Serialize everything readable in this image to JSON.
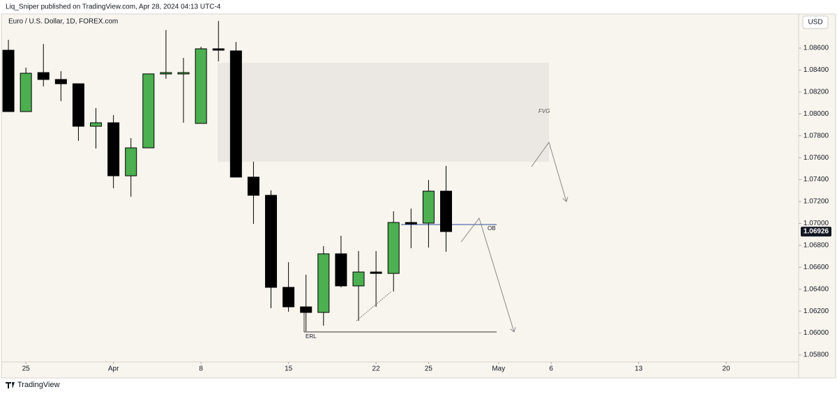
{
  "header": {
    "published": "Liq_Sniper published on TradingView.com, Apr 28, 2024 04:13 UTC-4",
    "currency": "USD",
    "brand": "TradingView"
  },
  "chart_data": {
    "type": "candlestick",
    "title": "Euro / U.S. Dollar, 1D, FOREX.com",
    "x": [
      0,
      1,
      2,
      3,
      4,
      5,
      6,
      7,
      8,
      9,
      10,
      11,
      12,
      13,
      14,
      15,
      16,
      17,
      18,
      19,
      20,
      21,
      22,
      23,
      24,
      25
    ],
    "open": [
      1.08581,
      1.08021,
      1.08377,
      1.08314,
      1.08275,
      1.07887,
      1.07919,
      1.07435,
      1.0769,
      1.08365,
      1.08377,
      1.07913,
      1.08594,
      1.08575,
      1.07423,
      1.07257,
      1.06417,
      1.06239,
      1.06188,
      1.06723,
      1.0643,
      1.06557,
      1.06544,
      1.07009,
      1.07003,
      1.07295
    ],
    "high": [
      1.08676,
      1.08422,
      1.08638,
      1.0839,
      1.08275,
      1.08053,
      1.07989,
      1.07779,
      1.08365,
      1.08765,
      1.08511,
      1.08613,
      1.08848,
      1.08657,
      1.07563,
      1.07302,
      1.06646,
      1.06532,
      1.06793,
      1.06888,
      1.06748,
      1.06748,
      1.07111,
      1.07136,
      1.07397,
      1.07525
    ],
    "low": [
      1.08021,
      1.08021,
      1.0825,
      1.08116,
      1.07754,
      1.07684,
      1.07321,
      1.07244,
      1.0769,
      1.0832,
      1.07919,
      1.07913,
      1.08479,
      1.07423,
      1.06996,
      1.06226,
      1.06194,
      1.06016,
      1.06067,
      1.06417,
      1.06112,
      1.06239,
      1.06379,
      1.06774,
      1.0678,
      1.06742
    ],
    "close": [
      1.08021,
      1.08371,
      1.08314,
      1.08275,
      1.07887,
      1.07919,
      1.07435,
      1.0769,
      1.08365,
      1.08377,
      1.08377,
      1.08594,
      1.08587,
      1.07423,
      1.07257,
      1.06417,
      1.06239,
      1.06188,
      1.06723,
      1.0643,
      1.06557,
      1.06544,
      1.07009,
      1.07003,
      1.07295,
      1.06926
    ],
    "up_color": "#4caf50",
    "down_color": "#000000",
    "last_price": 1.06926,
    "xlim": [
      -0.48,
      45.14
    ],
    "xticks": [
      {
        "value": 1,
        "label": "25"
      },
      {
        "value": 6,
        "label": "Apr"
      },
      {
        "value": 11,
        "label": "8"
      },
      {
        "value": 16,
        "label": "15"
      },
      {
        "value": 21,
        "label": "22"
      },
      {
        "value": 24,
        "label": "25"
      },
      {
        "value": 28,
        "label": "May"
      },
      {
        "value": 31,
        "label": "6"
      },
      {
        "value": 36,
        "label": "13"
      },
      {
        "value": 41,
        "label": "20"
      }
    ],
    "ylim": [
      1.0573,
      1.08912
    ],
    "yticks": [
      {
        "value": 1.086,
        "label": "1.08600"
      },
      {
        "value": 1.084,
        "label": "1.08400"
      },
      {
        "value": 1.082,
        "label": "1.08200"
      },
      {
        "value": 1.08,
        "label": "1.08000"
      },
      {
        "value": 1.078,
        "label": "1.07800"
      },
      {
        "value": 1.076,
        "label": "1.07600"
      },
      {
        "value": 1.074,
        "label": "1.07400"
      },
      {
        "value": 1.072,
        "label": "1.07200"
      },
      {
        "value": 1.07,
        "label": "1.07000"
      },
      {
        "value": 1.068,
        "label": "1.06800"
      },
      {
        "value": 1.066,
        "label": "1.06600"
      },
      {
        "value": 1.064,
        "label": "1.06400"
      },
      {
        "value": 1.062,
        "label": "1.06200"
      },
      {
        "value": 1.06,
        "label": "1.06000"
      },
      {
        "value": 1.058,
        "label": "1.05800"
      }
    ],
    "grid": false,
    "annotations": {
      "fvg": "FVG",
      "ob": "OB",
      "erl": "ERL"
    }
  }
}
